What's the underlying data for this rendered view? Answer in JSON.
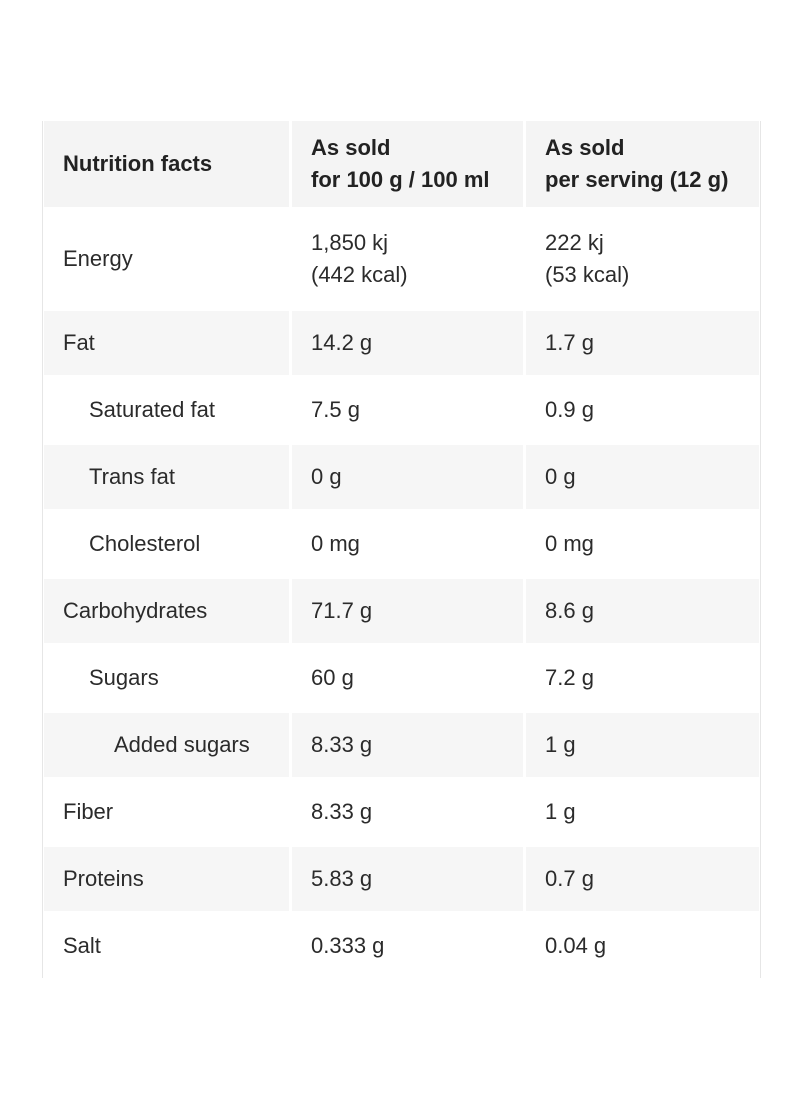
{
  "table": {
    "headers": {
      "col1": "Nutrition facts",
      "col2_line1": "As sold",
      "col2_line2": "for 100 g / 100 ml",
      "col3_line1": "As sold",
      "col3_line2": "per serving (12 g)"
    },
    "energy": {
      "label": "Energy",
      "per100_kj": "1,850 kj",
      "per100_kcal": "(442 kcal)",
      "serving_kj": "222 kj",
      "serving_kcal": "(53 kcal)"
    },
    "rows": [
      {
        "label": "Fat",
        "per100": "14.2 g",
        "serving": "1.7 g"
      },
      {
        "label": "Saturated fat",
        "per100": "7.5 g",
        "serving": "0.9 g"
      },
      {
        "label": "Trans fat",
        "per100": "0 g",
        "serving": "0 g"
      },
      {
        "label": "Cholesterol",
        "per100": "0 mg",
        "serving": "0 mg"
      },
      {
        "label": "Carbohydrates",
        "per100": "71.7 g",
        "serving": "8.6 g"
      },
      {
        "label": "Sugars",
        "per100": "60 g",
        "serving": "7.2 g"
      },
      {
        "label": "Added sugars",
        "per100": "8.33 g",
        "serving": "1 g"
      },
      {
        "label": "Fiber",
        "per100": "8.33 g",
        "serving": "1 g"
      },
      {
        "label": "Proteins",
        "per100": "5.83 g",
        "serving": "0.7 g"
      },
      {
        "label": "Salt",
        "per100": "0.333 g",
        "serving": "0.04 g"
      }
    ]
  }
}
